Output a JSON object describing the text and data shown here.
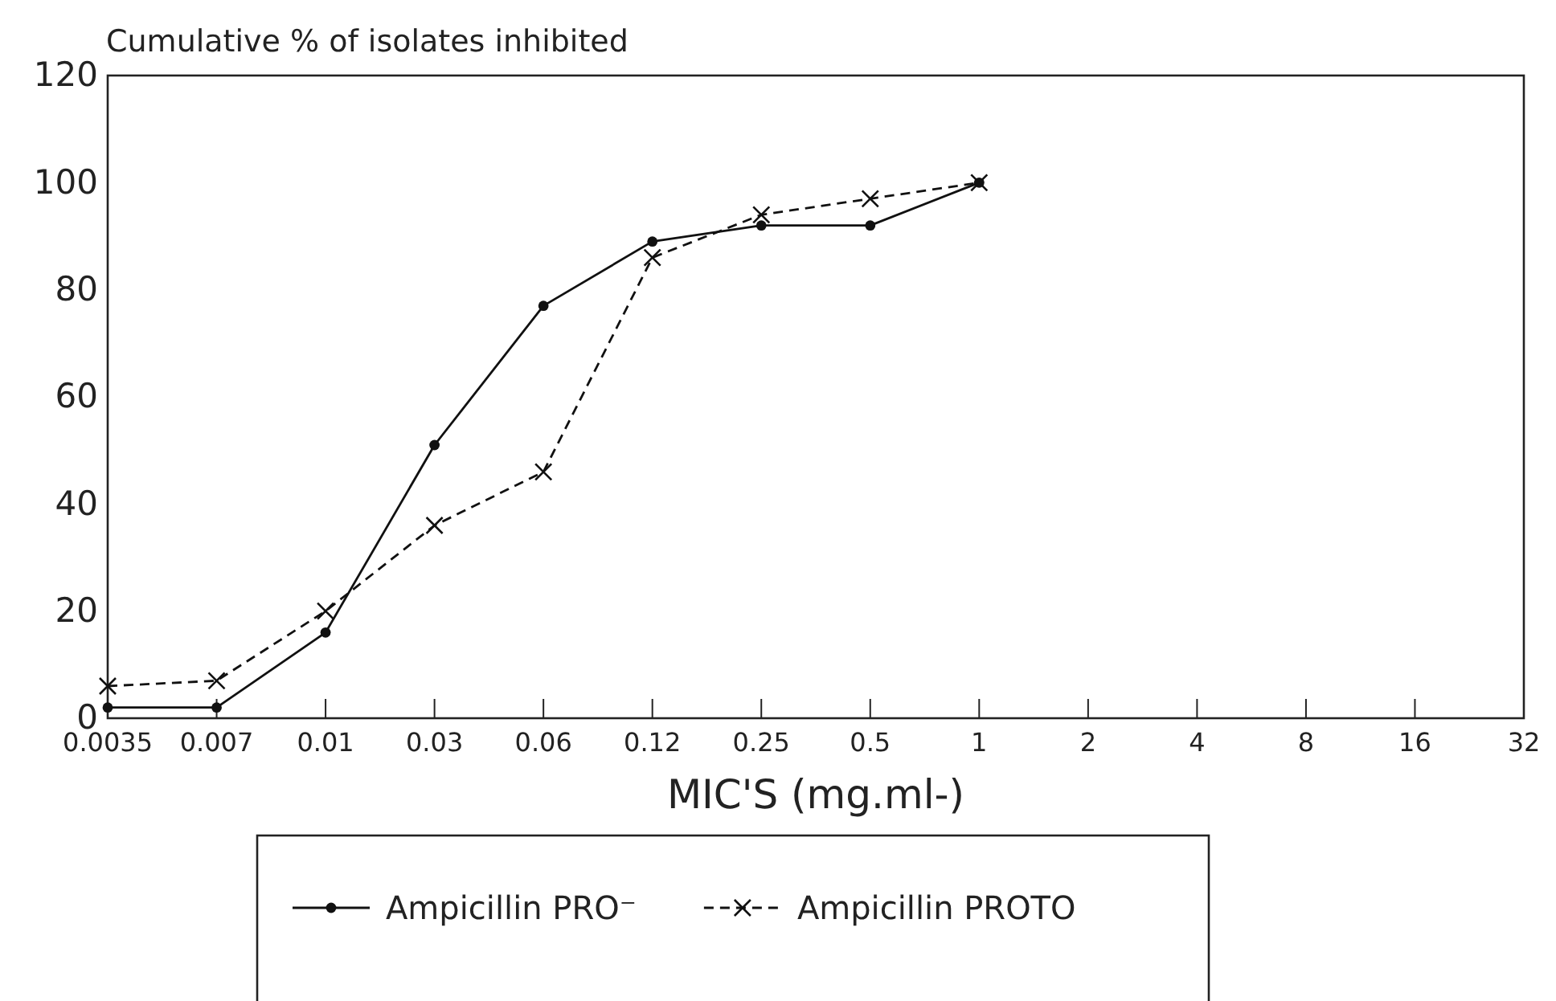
{
  "chart_data": {
    "type": "line",
    "ylabel": "Cumulative % of isolates inhibited",
    "xlabel": "MIC'S (mg.ml-)",
    "categories": [
      "0.0035",
      "0.007",
      "0.01",
      "0.03",
      "0.06",
      "0.12",
      "0.25",
      "0.5",
      "1",
      "2",
      "4",
      "8",
      "16",
      "32"
    ],
    "series": [
      {
        "name": "Ampicillin PRO⁻",
        "color": "#111111",
        "marker": "circle",
        "line_style": "solid",
        "values": [
          2,
          2,
          16,
          51,
          77,
          89,
          92,
          92,
          100,
          null,
          null,
          null,
          null,
          null
        ]
      },
      {
        "name": "Ampicillin PROTO",
        "color": "#111111",
        "marker": "cross",
        "line_style": "dashed",
        "values": [
          6,
          7,
          20,
          36,
          46,
          86,
          94,
          97,
          100,
          null,
          null,
          null,
          null,
          null
        ]
      }
    ],
    "ylim": [
      0,
      120
    ],
    "yticks": [
      0,
      20,
      40,
      60,
      80,
      100,
      120
    ],
    "grid": false,
    "legend": "bottom"
  }
}
